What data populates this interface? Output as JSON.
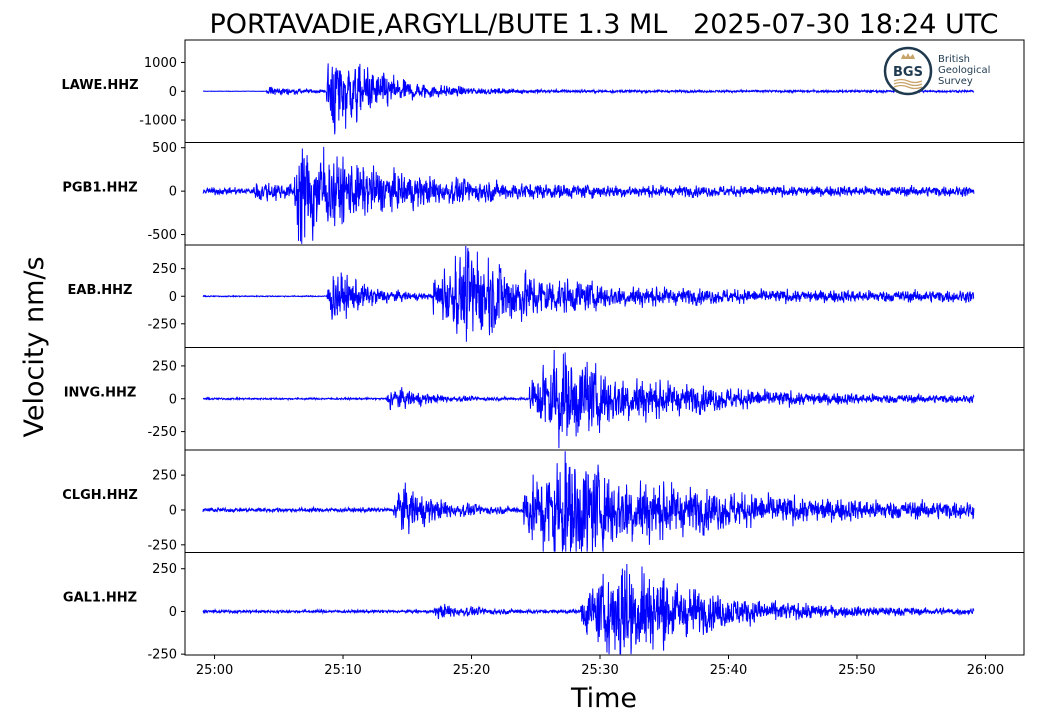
{
  "chart_data": {
    "type": "line",
    "title": "PORTAVADIE,ARGYLL/BUTE 1.3 ML   2025-07-30 18:24 UTC",
    "xlabel": "Time",
    "ylabel": "Velocity nm/s",
    "x_tick_labels": [
      "25:00",
      "25:10",
      "25:20",
      "25:30",
      "25:40",
      "25:50",
      "26:00"
    ],
    "x_tick_seconds": [
      0,
      10,
      20,
      30,
      40,
      50,
      60
    ],
    "x_range_seconds": [
      -2.3,
      63.0
    ],
    "trace_span_seconds": [
      -0.9,
      59.1
    ],
    "line_color": "#0000ff",
    "grid": false,
    "logo": {
      "text_lines": [
        "British",
        "Geological",
        "Survey"
      ],
      "abbr": "BGS"
    },
    "traces": [
      {
        "station": "LAWE.HHZ",
        "ylim": [
          -1780,
          1780
        ],
        "yticks": [
          1000,
          0,
          -1000
        ],
        "ytick_labels": [
          "1000",
          "0",
          "-1000"
        ],
        "p_arrival_s": 4.0,
        "s_arrival_s": 8.7,
        "noise": 8,
        "p_amp": 250,
        "s_amp": 1700,
        "peak_s": 9.0,
        "coda_decay": 4.0
      },
      {
        "station": "PGB1.HHZ",
        "ylim": [
          -620,
          560
        ],
        "yticks": [
          500,
          0,
          -500
        ],
        "ytick_labels": [
          "500",
          "0",
          "-500"
        ],
        "p_arrival_s": 3.0,
        "s_arrival_s": 6.2,
        "noise": 45,
        "p_amp": 150,
        "s_amp": 560,
        "peak_s": 6.5,
        "coda_decay": 7.0
      },
      {
        "station": "EAB.HHZ",
        "ylim": [
          -465,
          465
        ],
        "yticks": [
          250,
          0,
          -250
        ],
        "ytick_labels": [
          "250",
          "0",
          "-250"
        ],
        "p_arrival_s": 8.7,
        "s_arrival_s": 17.0,
        "noise": 6,
        "p_amp": 370,
        "s_amp": 410,
        "peak_s": 19.8,
        "coda_decay": 6.0
      },
      {
        "station": "INVG.HHZ",
        "ylim": [
          -390,
          390
        ],
        "yticks": [
          250,
          0,
          -250
        ],
        "ytick_labels": [
          "250",
          "0",
          "-250"
        ],
        "p_arrival_s": 13.3,
        "s_arrival_s": 24.5,
        "noise": 8,
        "p_amp": 130,
        "s_amp": 370,
        "peak_s": 26.5,
        "coda_decay": 8.0
      },
      {
        "station": "CLGH.HHZ",
        "ylim": [
          -305,
          430
        ],
        "yticks": [
          250,
          0,
          -250
        ],
        "ytick_labels": [
          "250",
          "0",
          "-250"
        ],
        "p_arrival_s": 13.9,
        "s_arrival_s": 24.0,
        "noise": 18,
        "p_amp": 260,
        "s_amp": 410,
        "peak_s": 27.0,
        "coda_decay": 9.0
      },
      {
        "station": "GAL1.HHZ",
        "ylim": [
          -255,
          345
        ],
        "yticks": [
          250,
          0,
          -250
        ],
        "ytick_labels": [
          "250",
          "0",
          "-250"
        ],
        "p_arrival_s": 17.0,
        "s_arrival_s": 28.5,
        "noise": 10,
        "p_amp": 60,
        "s_amp": 330,
        "peak_s": 32.0,
        "coda_decay": 6.0
      }
    ]
  }
}
